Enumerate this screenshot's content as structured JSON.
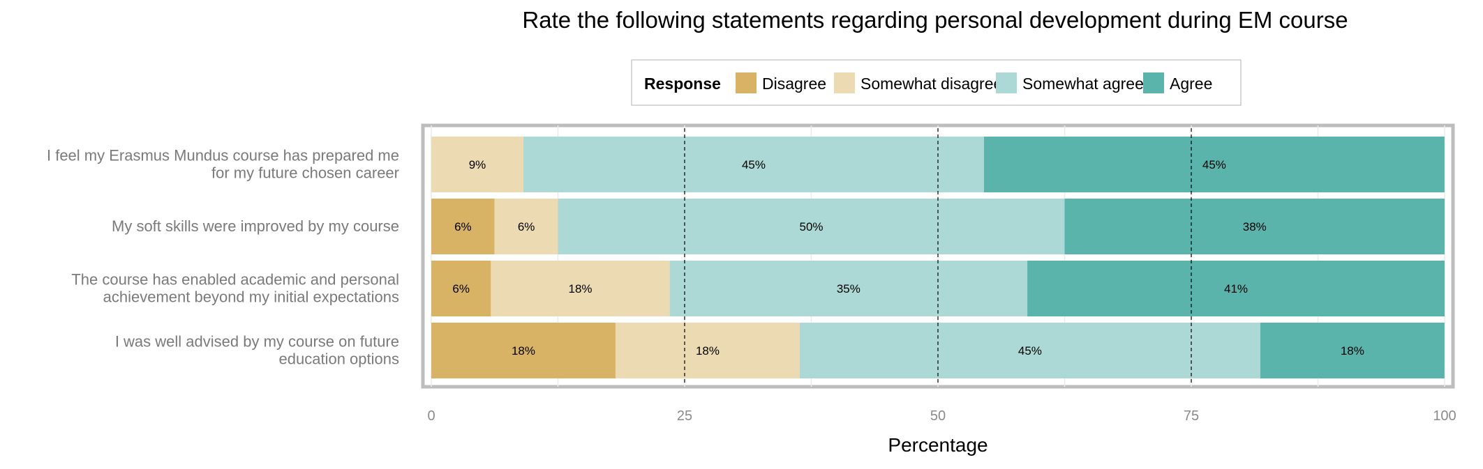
{
  "chart_data": {
    "type": "bar",
    "orientation": "horizontal",
    "stacked": true,
    "title": "Rate the following statements regarding personal development during EM course",
    "xlabel": "Percentage",
    "ylabel": "",
    "xlim": [
      0,
      100
    ],
    "xticks": [
      "0",
      "25",
      "50",
      "75",
      "100"
    ],
    "grid": true,
    "reference_lines": [
      25,
      50,
      75
    ],
    "legend": {
      "title": "Response",
      "placement": "top"
    },
    "categories": [
      [
        "I feel my Erasmus Mundus course has prepared me",
        "for my future chosen career"
      ],
      [
        "My soft skills were improved by my course"
      ],
      [
        "The course has enabled academic and personal",
        "achievement beyond my initial expectations"
      ],
      [
        "I was well advised by my course on future",
        "education options"
      ]
    ],
    "series": [
      {
        "name": "Disagree",
        "color": "#d8b365",
        "values": [
          0,
          6.25,
          5.88,
          18.18
        ],
        "labels": [
          "",
          "6%",
          "6%",
          "18%"
        ]
      },
      {
        "name": "Somewhat disagree",
        "color": "#ebdab2",
        "values": [
          9.09,
          6.25,
          17.65,
          18.18
        ],
        "labels": [
          "9%",
          "6%",
          "18%",
          "18%"
        ]
      },
      {
        "name": "Somewhat agree",
        "color": "#acd9d5",
        "values": [
          45.45,
          50,
          35.29,
          45.45
        ],
        "labels": [
          "45%",
          "50%",
          "35%",
          "45%"
        ]
      },
      {
        "name": "Agree",
        "color": "#5ab4ac",
        "values": [
          45.45,
          37.5,
          41.18,
          18.18
        ],
        "labels": [
          "45%",
          "38%",
          "41%",
          "18%"
        ]
      }
    ]
  }
}
